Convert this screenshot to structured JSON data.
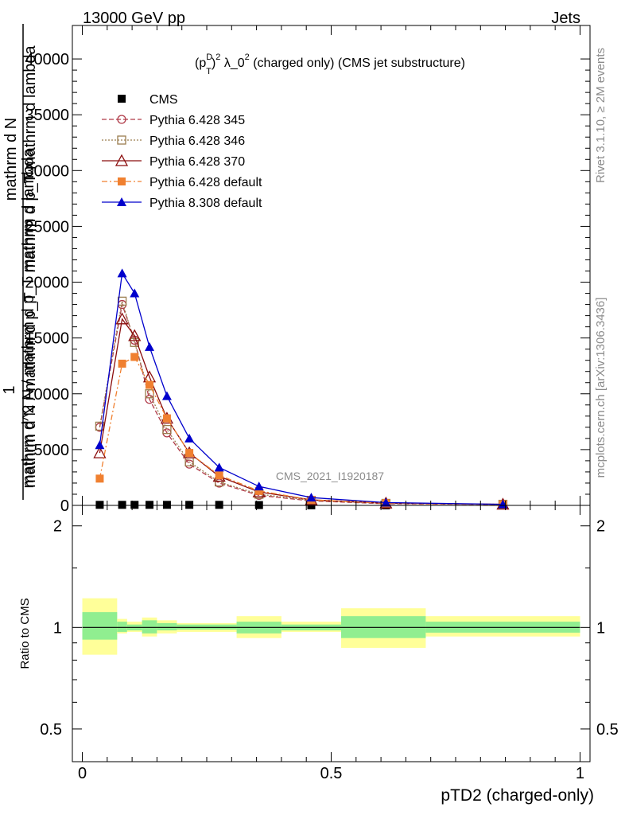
{
  "header": {
    "left": "13000 GeV pp",
    "right": "Jets"
  },
  "side_labels": {
    "rivet": "Rivet 3.1.10, ≥ 2M events",
    "mcplots": "mcplots.cern.ch [arXiv:1306.3436]"
  },
  "watermark": "CMS_2021_I1920187",
  "chart_data": [
    {
      "type": "line",
      "title": "(p_T^D)^2 λ_0^2 (charged only) (CMS jet substructure)",
      "title_parts": {
        "a": "(p",
        "sup1": "D",
        "sub1": "T",
        "b": ")",
        "sup2": "2",
        "c": " λ_0",
        "sup3": "2",
        "d": " (charged only) (CMS jet substructure)"
      },
      "ylabel_lines": [
        "mathrm d N",
        "1",
        "mathrm d p_T mathrm d lambda",
        "mathrm d^2 N / mathrm d p_T mathrm d lambda",
        "mathrm d N / mathrm d p_T"
      ],
      "ylim": [
        0,
        43000
      ],
      "xlim": [
        -0.02,
        1.02
      ],
      "y_ticks": [
        0,
        5000,
        10000,
        15000,
        20000,
        25000,
        30000,
        35000,
        40000
      ],
      "y_tick_labels": [
        "0",
        "5000",
        "10000",
        "15000",
        "20000",
        "25000",
        "30000",
        "35000",
        "40000"
      ],
      "x": [
        0.035,
        0.08,
        0.105,
        0.135,
        0.17,
        0.215,
        0.275,
        0.355,
        0.46,
        0.61,
        0.845
      ],
      "series": [
        {
          "name": "CMS",
          "color": "#000000",
          "marker": "square",
          "line": "none",
          "values": [
            50,
            50,
            50,
            50,
            50,
            50,
            50,
            30,
            10,
            5,
            2
          ]
        },
        {
          "name": "Pythia 6.428 345",
          "color": "#b03a48",
          "marker": "circle-open",
          "line": "dashed",
          "values": [
            7000,
            18000,
            14800,
            9500,
            6500,
            3700,
            2000,
            900,
            400,
            150,
            80
          ]
        },
        {
          "name": "Pythia 6.428 346",
          "color": "#9a7d4e",
          "marker": "square-open",
          "line": "dotted",
          "values": [
            7100,
            18300,
            14600,
            10000,
            6800,
            3900,
            2100,
            1000,
            450,
            180,
            100
          ]
        },
        {
          "name": "Pythia 6.428 370",
          "color": "#8b0d0d",
          "marker": "triangle-open",
          "line": "solid",
          "values": [
            4700,
            16700,
            15200,
            11500,
            7800,
            4700,
            2600,
            1200,
            500,
            200,
            100
          ]
        },
        {
          "name": "Pythia 6.428 default",
          "color": "#f08030",
          "marker": "square",
          "line": "dashdot",
          "values": [
            2400,
            12700,
            13300,
            10800,
            7800,
            4700,
            2700,
            1300,
            500,
            200,
            100
          ]
        },
        {
          "name": "Pythia 8.308 default",
          "color": "#0000cc",
          "marker": "triangle",
          "line": "solid",
          "values": [
            5400,
            20800,
            19000,
            14200,
            9800,
            6000,
            3400,
            1700,
            700,
            250,
            100
          ]
        }
      ]
    },
    {
      "type": "area",
      "ylabel": "Ratio to CMS",
      "xlabel": "pTD2 (charged-only)",
      "ylim": [
        0.4,
        2.3
      ],
      "y_scale": "log",
      "xlim": [
        -0.02,
        1.02
      ],
      "x_ticks": [
        0,
        0.5,
        1
      ],
      "x_tick_labels": [
        "0",
        "0.5",
        "1"
      ],
      "y_ticks": [
        0.5,
        1,
        2
      ],
      "y_tick_labels": [
        "0.5",
        "1",
        "2"
      ],
      "bins": [
        {
          "x0": 0.0,
          "x1": 0.07,
          "inner": [
            0.92,
            1.11
          ],
          "outer": [
            0.83,
            1.22
          ]
        },
        {
          "x0": 0.07,
          "x1": 0.09,
          "inner": [
            0.97,
            1.04
          ],
          "outer": [
            0.96,
            1.06
          ]
        },
        {
          "x0": 0.09,
          "x1": 0.12,
          "inner": [
            0.98,
            1.02
          ],
          "outer": [
            0.97,
            1.04
          ]
        },
        {
          "x0": 0.12,
          "x1": 0.15,
          "inner": [
            0.96,
            1.05
          ],
          "outer": [
            0.94,
            1.07
          ]
        },
        {
          "x0": 0.15,
          "x1": 0.19,
          "inner": [
            0.98,
            1.03
          ],
          "outer": [
            0.96,
            1.05
          ]
        },
        {
          "x0": 0.19,
          "x1": 0.31,
          "inner": [
            0.985,
            1.02
          ],
          "outer": [
            0.97,
            1.03
          ]
        },
        {
          "x0": 0.31,
          "x1": 0.4,
          "inner": [
            0.96,
            1.04
          ],
          "outer": [
            0.93,
            1.08
          ]
        },
        {
          "x0": 0.4,
          "x1": 0.52,
          "inner": [
            0.98,
            1.02
          ],
          "outer": [
            0.97,
            1.04
          ]
        },
        {
          "x0": 0.52,
          "x1": 0.69,
          "inner": [
            0.93,
            1.08
          ],
          "outer": [
            0.87,
            1.14
          ]
        },
        {
          "x0": 0.69,
          "x1": 1.0,
          "inner": [
            0.965,
            1.04
          ],
          "outer": [
            0.94,
            1.08
          ]
        }
      ],
      "colors": {
        "inner": "#90ee90",
        "outer": "#ffff99",
        "reference_line": "#000000"
      }
    }
  ]
}
